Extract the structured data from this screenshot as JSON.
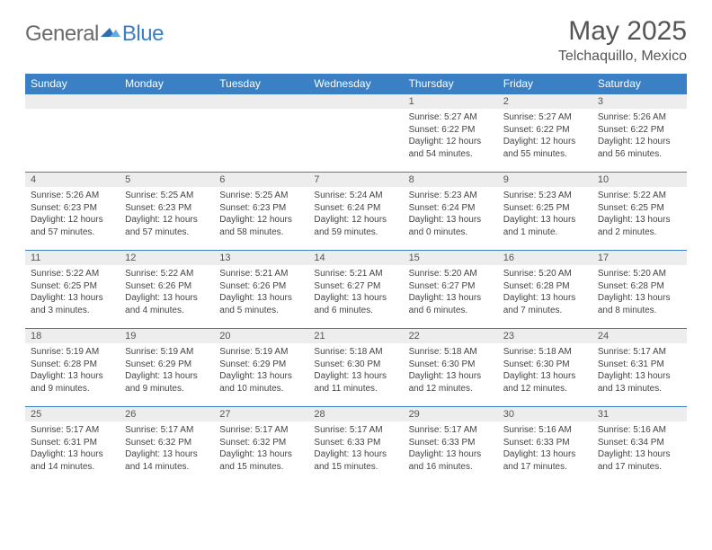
{
  "brand": {
    "name1": "General",
    "name2": "Blue"
  },
  "title": "May 2025",
  "location": "Telchaquillo, Mexico",
  "colors": {
    "header_bg": "#3b7fc4",
    "header_text": "#ffffff",
    "rule": "#3b7fc4",
    "daynum_bg": "#ededed",
    "text": "#444444",
    "title": "#555555"
  },
  "day_headers": [
    "Sunday",
    "Monday",
    "Tuesday",
    "Wednesday",
    "Thursday",
    "Friday",
    "Saturday"
  ],
  "weeks": [
    [
      {
        "n": "",
        "sr": "",
        "ss": "",
        "dl": ""
      },
      {
        "n": "",
        "sr": "",
        "ss": "",
        "dl": ""
      },
      {
        "n": "",
        "sr": "",
        "ss": "",
        "dl": ""
      },
      {
        "n": "",
        "sr": "",
        "ss": "",
        "dl": ""
      },
      {
        "n": "1",
        "sr": "Sunrise: 5:27 AM",
        "ss": "Sunset: 6:22 PM",
        "dl": "Daylight: 12 hours and 54 minutes."
      },
      {
        "n": "2",
        "sr": "Sunrise: 5:27 AM",
        "ss": "Sunset: 6:22 PM",
        "dl": "Daylight: 12 hours and 55 minutes."
      },
      {
        "n": "3",
        "sr": "Sunrise: 5:26 AM",
        "ss": "Sunset: 6:22 PM",
        "dl": "Daylight: 12 hours and 56 minutes."
      }
    ],
    [
      {
        "n": "4",
        "sr": "Sunrise: 5:26 AM",
        "ss": "Sunset: 6:23 PM",
        "dl": "Daylight: 12 hours and 57 minutes."
      },
      {
        "n": "5",
        "sr": "Sunrise: 5:25 AM",
        "ss": "Sunset: 6:23 PM",
        "dl": "Daylight: 12 hours and 57 minutes."
      },
      {
        "n": "6",
        "sr": "Sunrise: 5:25 AM",
        "ss": "Sunset: 6:23 PM",
        "dl": "Daylight: 12 hours and 58 minutes."
      },
      {
        "n": "7",
        "sr": "Sunrise: 5:24 AM",
        "ss": "Sunset: 6:24 PM",
        "dl": "Daylight: 12 hours and 59 minutes."
      },
      {
        "n": "8",
        "sr": "Sunrise: 5:23 AM",
        "ss": "Sunset: 6:24 PM",
        "dl": "Daylight: 13 hours and 0 minutes."
      },
      {
        "n": "9",
        "sr": "Sunrise: 5:23 AM",
        "ss": "Sunset: 6:25 PM",
        "dl": "Daylight: 13 hours and 1 minute."
      },
      {
        "n": "10",
        "sr": "Sunrise: 5:22 AM",
        "ss": "Sunset: 6:25 PM",
        "dl": "Daylight: 13 hours and 2 minutes."
      }
    ],
    [
      {
        "n": "11",
        "sr": "Sunrise: 5:22 AM",
        "ss": "Sunset: 6:25 PM",
        "dl": "Daylight: 13 hours and 3 minutes."
      },
      {
        "n": "12",
        "sr": "Sunrise: 5:22 AM",
        "ss": "Sunset: 6:26 PM",
        "dl": "Daylight: 13 hours and 4 minutes."
      },
      {
        "n": "13",
        "sr": "Sunrise: 5:21 AM",
        "ss": "Sunset: 6:26 PM",
        "dl": "Daylight: 13 hours and 5 minutes."
      },
      {
        "n": "14",
        "sr": "Sunrise: 5:21 AM",
        "ss": "Sunset: 6:27 PM",
        "dl": "Daylight: 13 hours and 6 minutes."
      },
      {
        "n": "15",
        "sr": "Sunrise: 5:20 AM",
        "ss": "Sunset: 6:27 PM",
        "dl": "Daylight: 13 hours and 6 minutes."
      },
      {
        "n": "16",
        "sr": "Sunrise: 5:20 AM",
        "ss": "Sunset: 6:28 PM",
        "dl": "Daylight: 13 hours and 7 minutes."
      },
      {
        "n": "17",
        "sr": "Sunrise: 5:20 AM",
        "ss": "Sunset: 6:28 PM",
        "dl": "Daylight: 13 hours and 8 minutes."
      }
    ],
    [
      {
        "n": "18",
        "sr": "Sunrise: 5:19 AM",
        "ss": "Sunset: 6:28 PM",
        "dl": "Daylight: 13 hours and 9 minutes."
      },
      {
        "n": "19",
        "sr": "Sunrise: 5:19 AM",
        "ss": "Sunset: 6:29 PM",
        "dl": "Daylight: 13 hours and 9 minutes."
      },
      {
        "n": "20",
        "sr": "Sunrise: 5:19 AM",
        "ss": "Sunset: 6:29 PM",
        "dl": "Daylight: 13 hours and 10 minutes."
      },
      {
        "n": "21",
        "sr": "Sunrise: 5:18 AM",
        "ss": "Sunset: 6:30 PM",
        "dl": "Daylight: 13 hours and 11 minutes."
      },
      {
        "n": "22",
        "sr": "Sunrise: 5:18 AM",
        "ss": "Sunset: 6:30 PM",
        "dl": "Daylight: 13 hours and 12 minutes."
      },
      {
        "n": "23",
        "sr": "Sunrise: 5:18 AM",
        "ss": "Sunset: 6:30 PM",
        "dl": "Daylight: 13 hours and 12 minutes."
      },
      {
        "n": "24",
        "sr": "Sunrise: 5:17 AM",
        "ss": "Sunset: 6:31 PM",
        "dl": "Daylight: 13 hours and 13 minutes."
      }
    ],
    [
      {
        "n": "25",
        "sr": "Sunrise: 5:17 AM",
        "ss": "Sunset: 6:31 PM",
        "dl": "Daylight: 13 hours and 14 minutes."
      },
      {
        "n": "26",
        "sr": "Sunrise: 5:17 AM",
        "ss": "Sunset: 6:32 PM",
        "dl": "Daylight: 13 hours and 14 minutes."
      },
      {
        "n": "27",
        "sr": "Sunrise: 5:17 AM",
        "ss": "Sunset: 6:32 PM",
        "dl": "Daylight: 13 hours and 15 minutes."
      },
      {
        "n": "28",
        "sr": "Sunrise: 5:17 AM",
        "ss": "Sunset: 6:33 PM",
        "dl": "Daylight: 13 hours and 15 minutes."
      },
      {
        "n": "29",
        "sr": "Sunrise: 5:17 AM",
        "ss": "Sunset: 6:33 PM",
        "dl": "Daylight: 13 hours and 16 minutes."
      },
      {
        "n": "30",
        "sr": "Sunrise: 5:16 AM",
        "ss": "Sunset: 6:33 PM",
        "dl": "Daylight: 13 hours and 17 minutes."
      },
      {
        "n": "31",
        "sr": "Sunrise: 5:16 AM",
        "ss": "Sunset: 6:34 PM",
        "dl": "Daylight: 13 hours and 17 minutes."
      }
    ]
  ]
}
